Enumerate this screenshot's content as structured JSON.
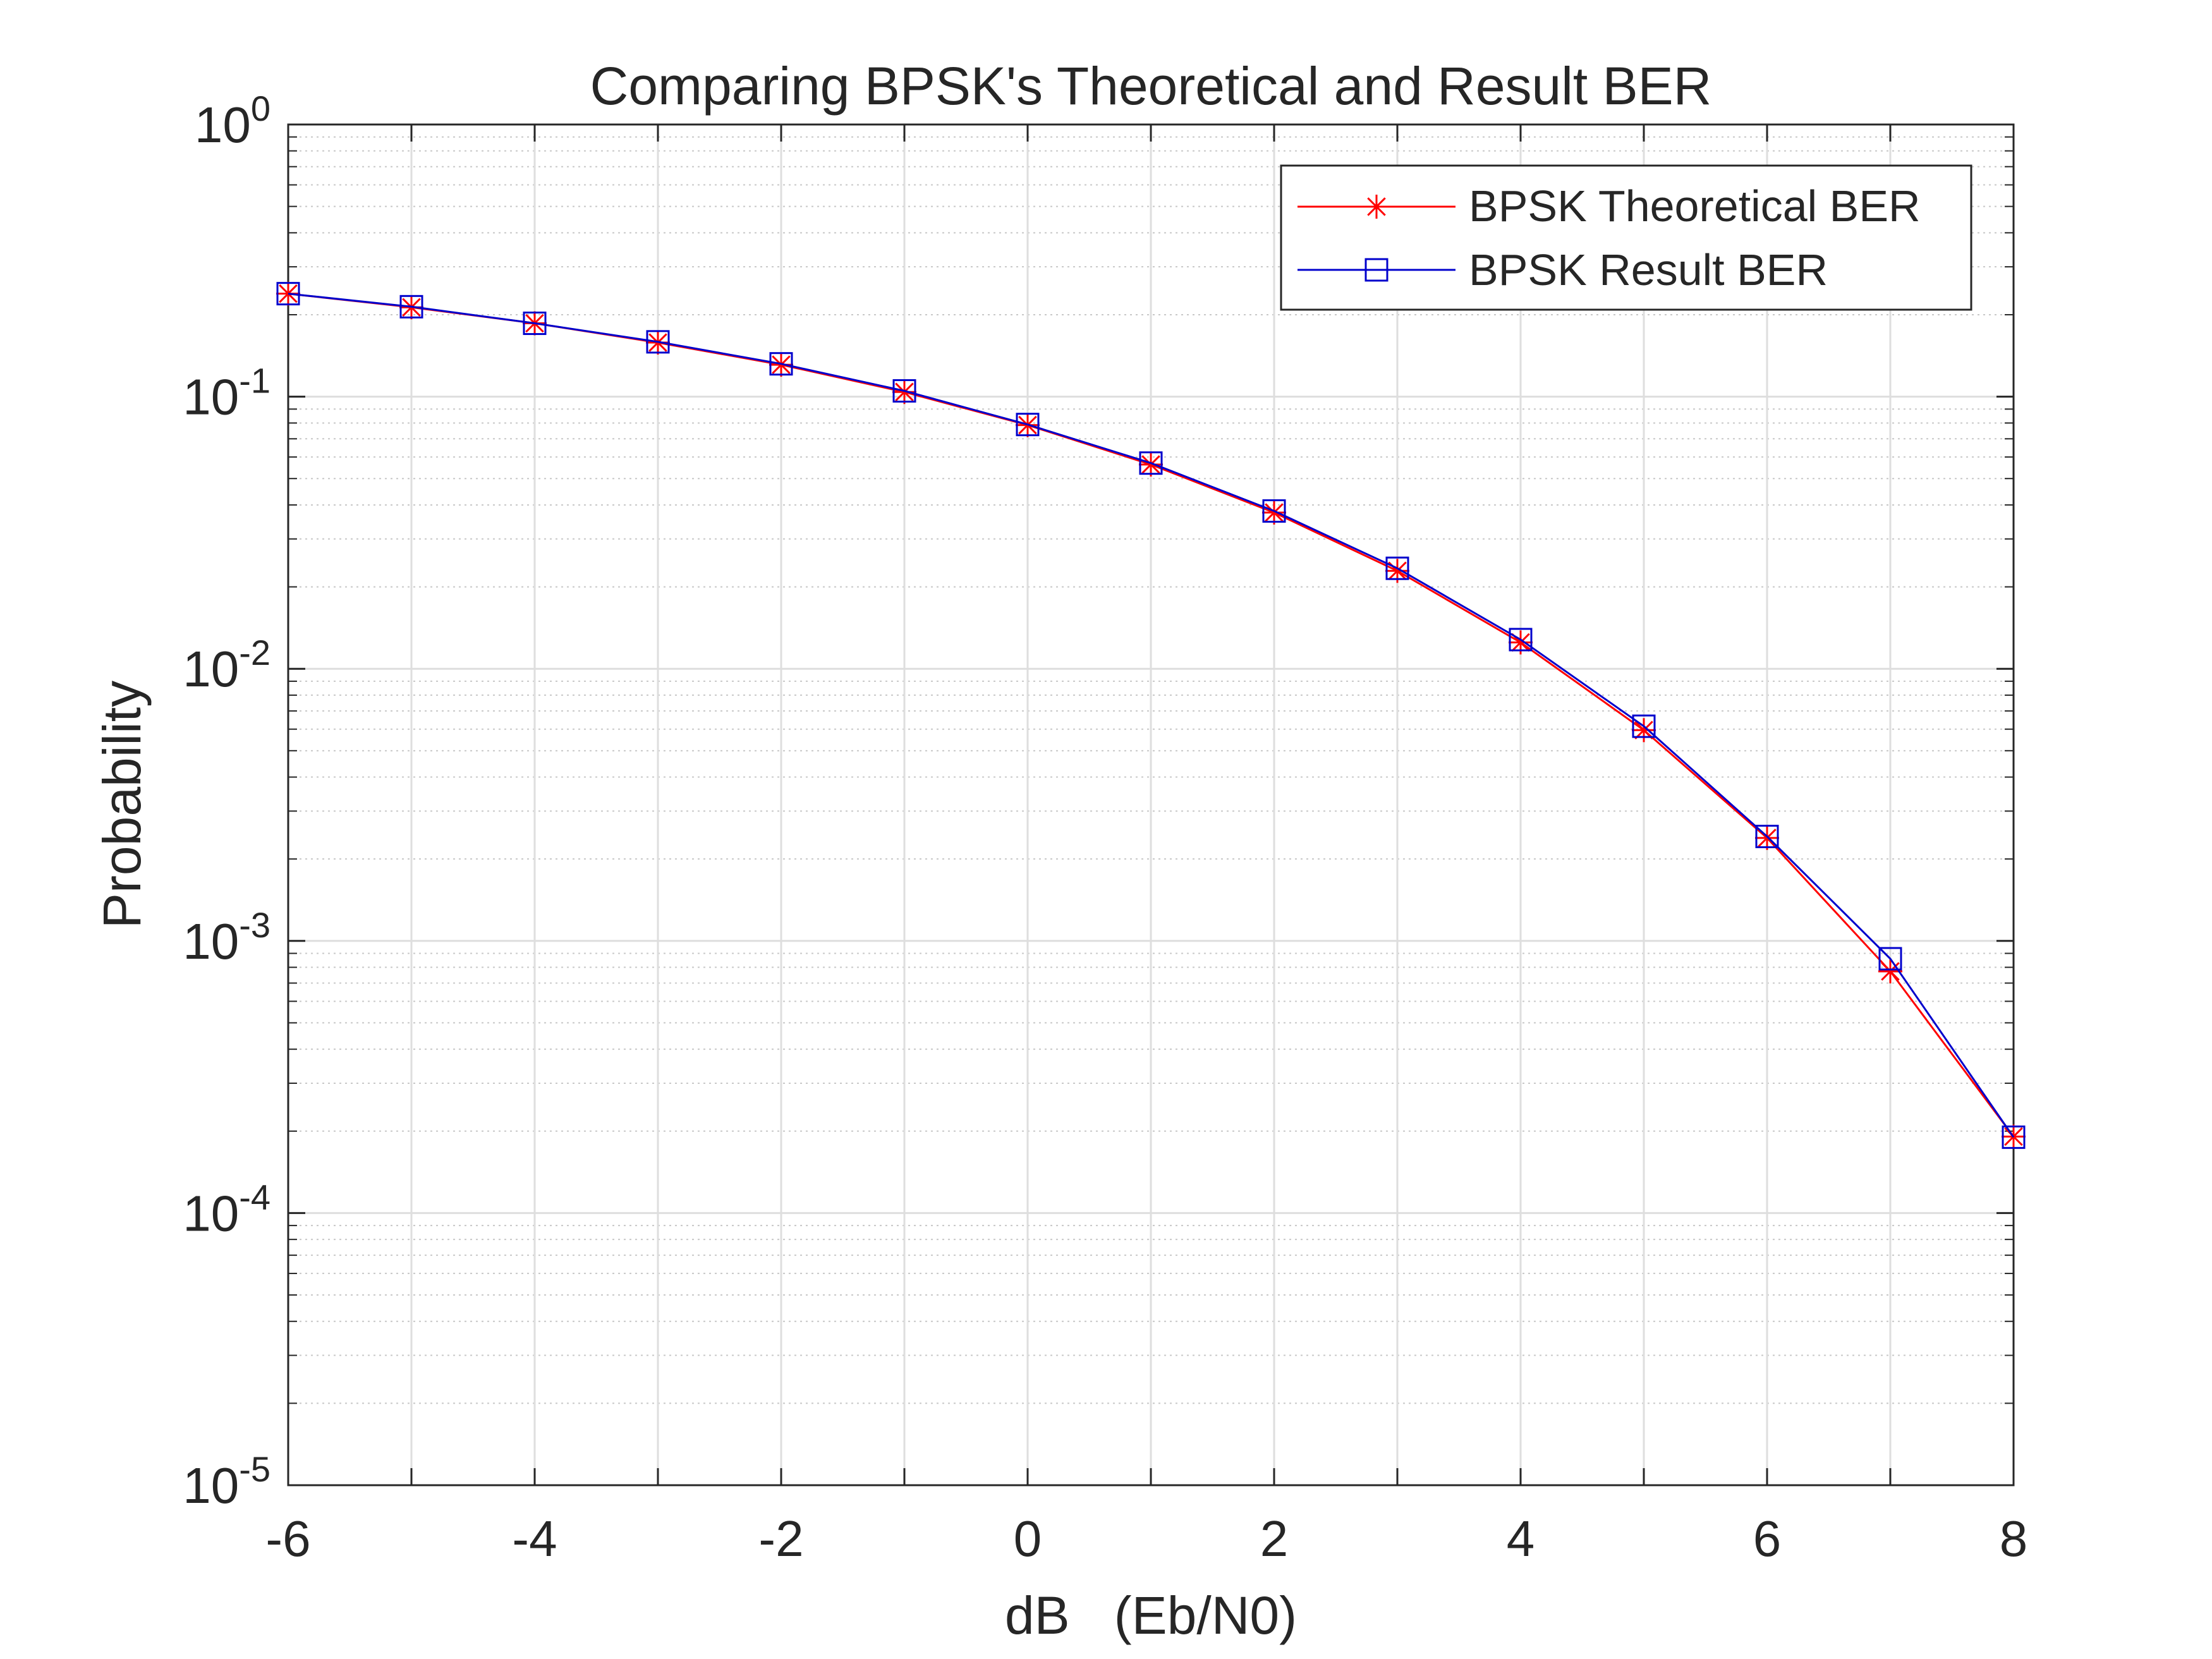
{
  "chart_data": {
    "type": "line",
    "title": "Comparing BPSK's Theoretical and Result BER",
    "xlabel": "dB   (Eb/N0)",
    "ylabel": "Probability",
    "x": [
      -6,
      -5,
      -4,
      -3,
      -2,
      -1,
      0,
      1,
      2,
      3,
      4,
      5,
      6,
      7,
      8
    ],
    "xlim": [
      -6,
      8
    ],
    "ylim": [
      1e-05,
      1
    ],
    "yscale": "log",
    "grid": true,
    "legend_position": "top-right",
    "xticks": [
      {
        "value": -6,
        "label": "-6"
      },
      {
        "value": -4,
        "label": "-4"
      },
      {
        "value": -2,
        "label": "-2"
      },
      {
        "value": 0,
        "label": "0"
      },
      {
        "value": 2,
        "label": "2"
      },
      {
        "value": 4,
        "label": "4"
      },
      {
        "value": 6,
        "label": "6"
      },
      {
        "value": 8,
        "label": "8"
      }
    ],
    "yticks": [
      {
        "value": 1,
        "base": "10",
        "exp": "0"
      },
      {
        "value": 0.1,
        "base": "10",
        "exp": "-1"
      },
      {
        "value": 0.01,
        "base": "10",
        "exp": "-2"
      },
      {
        "value": 0.001,
        "base": "10",
        "exp": "-3"
      },
      {
        "value": 0.0001,
        "base": "10",
        "exp": "-4"
      },
      {
        "value": 1e-05,
        "base": "10",
        "exp": "-5"
      }
    ],
    "series": [
      {
        "name": "BPSK Theoretical BER",
        "color": "#ff0000",
        "marker": "asterisk",
        "values": [
          0.239,
          0.213,
          0.186,
          0.158,
          0.131,
          0.104,
          0.0786,
          0.0563,
          0.0375,
          0.0229,
          0.0125,
          0.00595,
          0.00239,
          0.000773,
          0.000191
        ]
      },
      {
        "name": "BPSK Result BER",
        "color": "#0000cc",
        "marker": "square",
        "values": [
          0.239,
          0.214,
          0.186,
          0.159,
          0.132,
          0.105,
          0.079,
          0.057,
          0.038,
          0.0234,
          0.0128,
          0.00615,
          0.00242,
          0.00086,
          0.00019
        ]
      }
    ]
  }
}
